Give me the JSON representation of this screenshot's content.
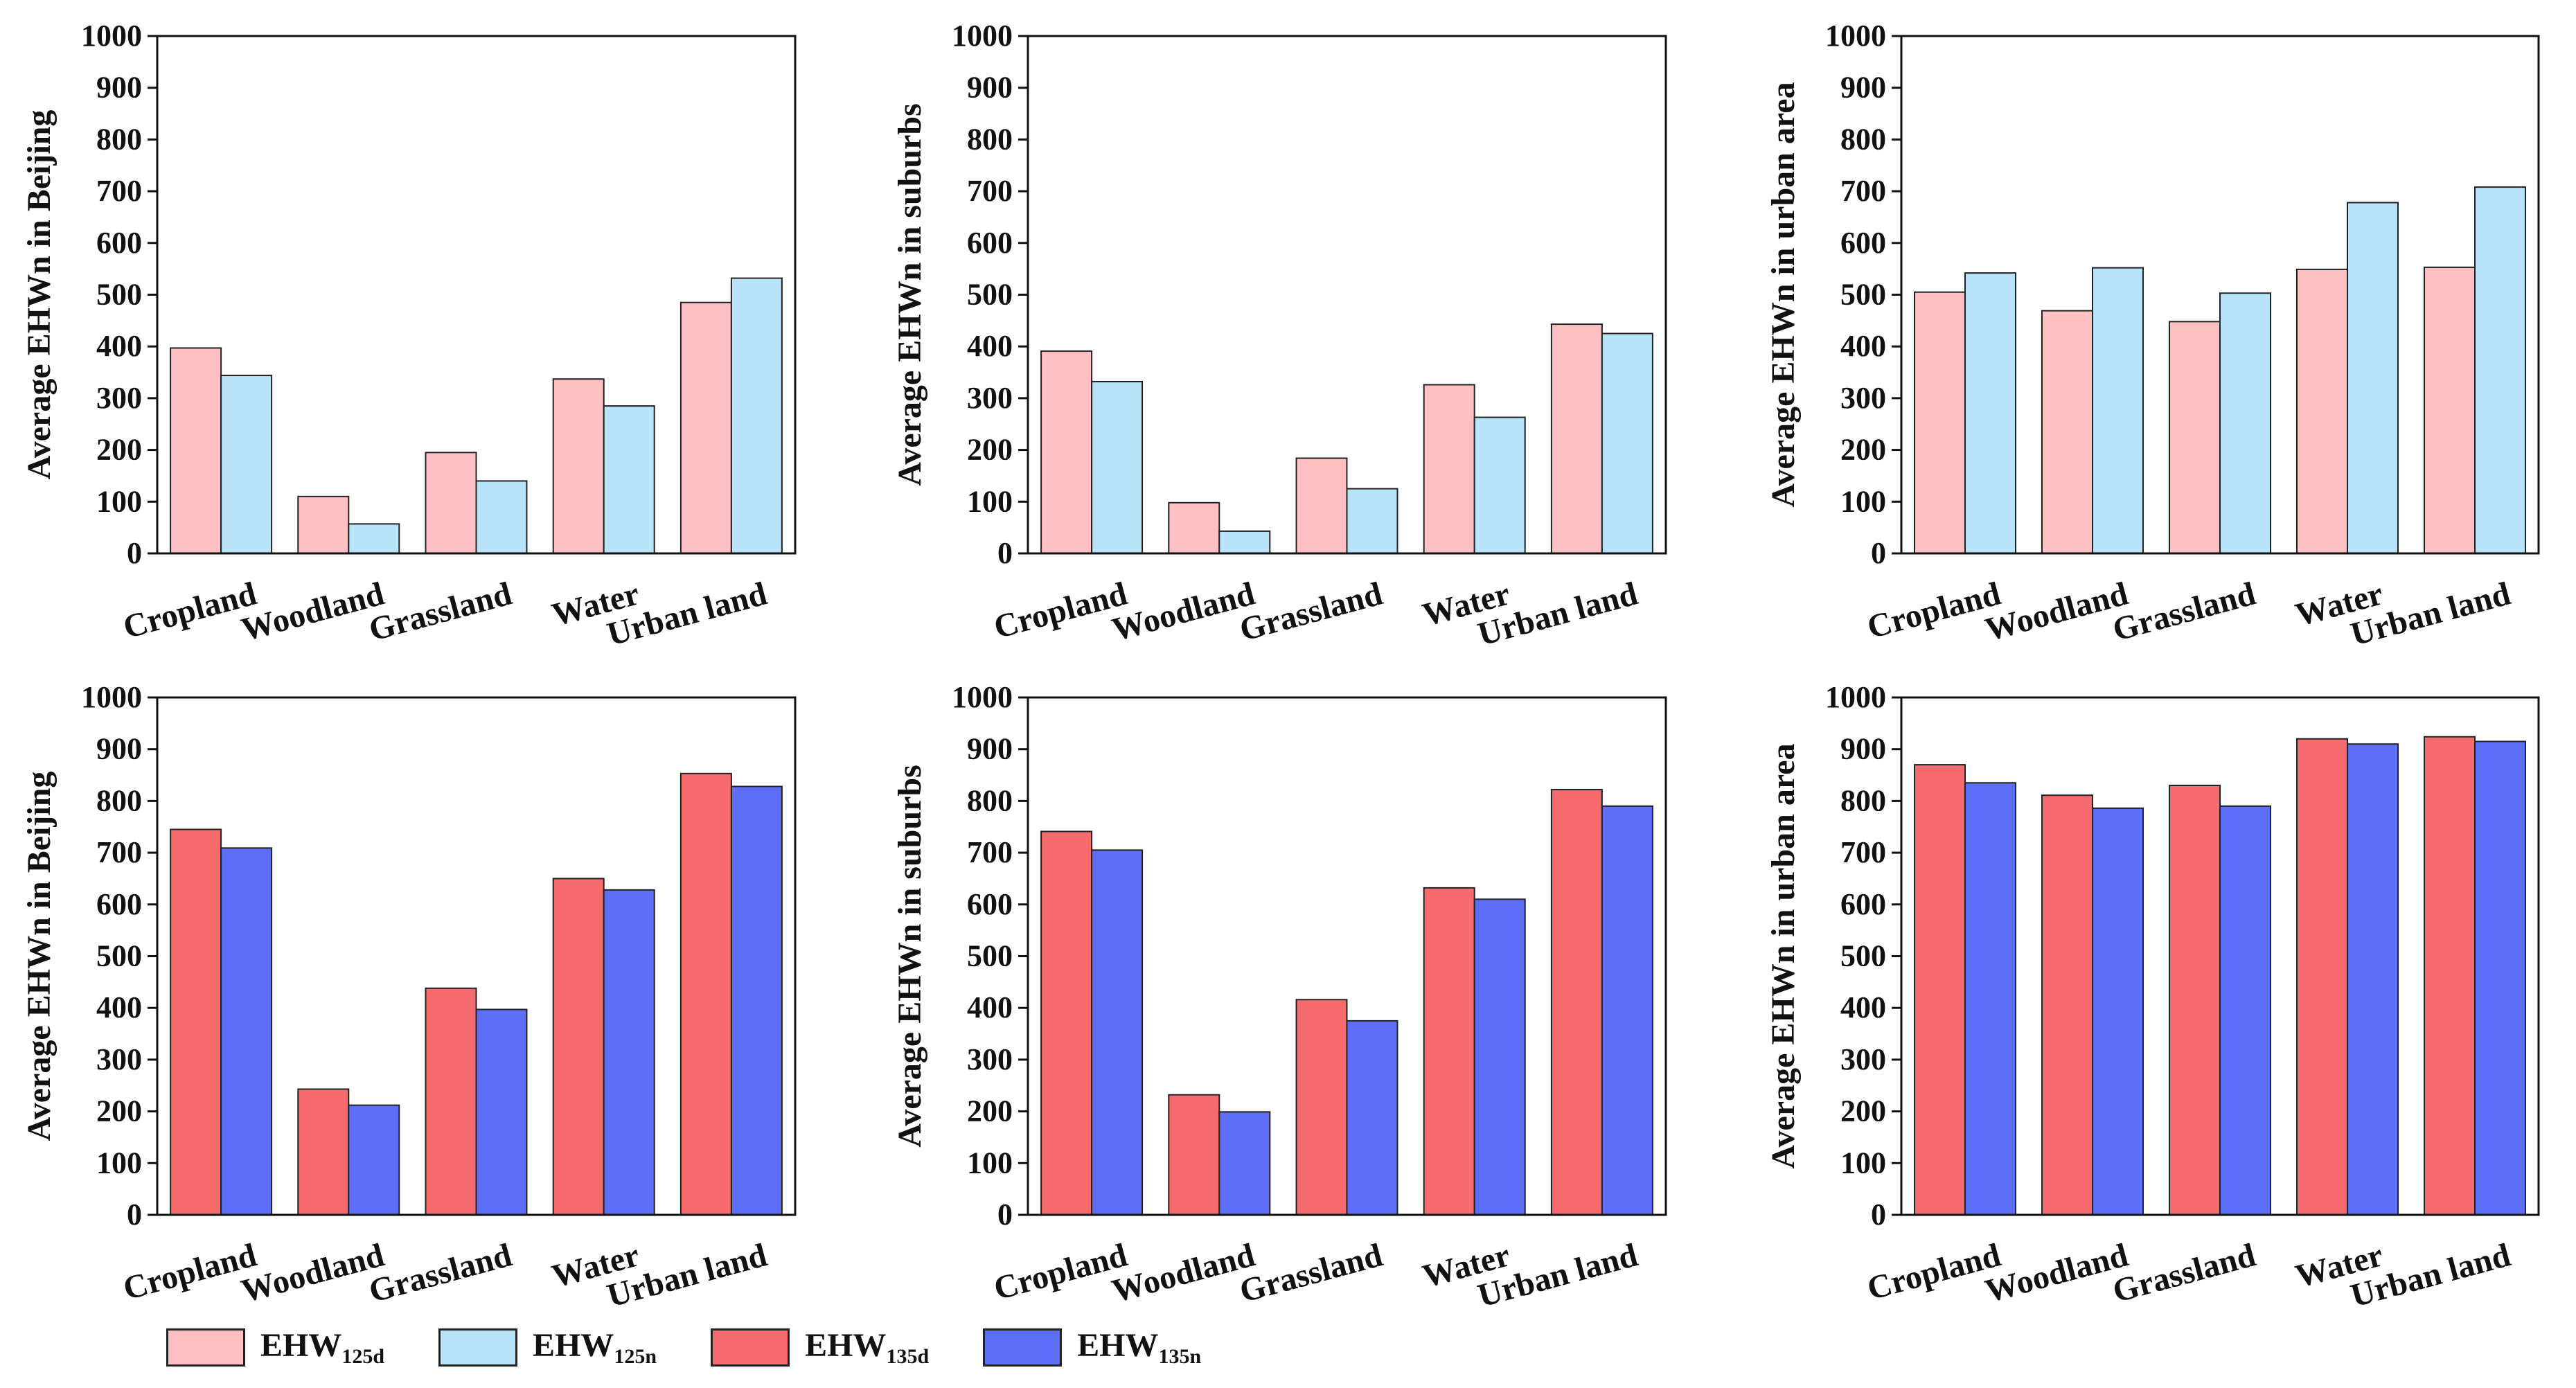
{
  "colors": {
    "EHW125d": "#ffc0c3",
    "EHW125n": "#b8e3f8",
    "EHW135d": "#f56b6e",
    "EHW135n": "#5e6ff7"
  },
  "legend": [
    {
      "key": "EHW125d",
      "main": "EHW",
      "sub": "125d"
    },
    {
      "key": "EHW125n",
      "main": "EHW",
      "sub": "125n"
    },
    {
      "key": "EHW135d",
      "main": "EHW",
      "sub": "135d"
    },
    {
      "key": "EHW135n",
      "main": "EHW",
      "sub": "135n"
    }
  ],
  "chart_data": [
    {
      "type": "bar",
      "ylabel": "Average EHWn in Beijing",
      "categories": [
        "Cropland",
        "Woodland",
        "Grassland",
        "Water",
        "Urban land"
      ],
      "ylim": [
        0,
        1000
      ],
      "yticks": [
        0,
        100,
        200,
        300,
        400,
        500,
        600,
        700,
        800,
        900,
        1000
      ],
      "series": [
        {
          "name": "EHW125d",
          "values": [
            397,
            110,
            195,
            337,
            485
          ]
        },
        {
          "name": "EHW125n",
          "values": [
            344,
            57,
            140,
            285,
            532
          ]
        }
      ]
    },
    {
      "type": "bar",
      "ylabel": "Average EHWn in suburbs",
      "categories": [
        "Cropland",
        "Woodland",
        "Grassland",
        "Water",
        "Urban land"
      ],
      "ylim": [
        0,
        1000
      ],
      "yticks": [
        0,
        100,
        200,
        300,
        400,
        500,
        600,
        700,
        800,
        900,
        1000
      ],
      "series": [
        {
          "name": "EHW125d",
          "values": [
            391,
            98,
            184,
            326,
            443
          ]
        },
        {
          "name": "EHW125n",
          "values": [
            332,
            43,
            125,
            263,
            425
          ]
        }
      ]
    },
    {
      "type": "bar",
      "ylabel": "Average EHWn in urban area",
      "categories": [
        "Cropland",
        "Woodland",
        "Grassland",
        "Water",
        "Urban land"
      ],
      "ylim": [
        0,
        1000
      ],
      "yticks": [
        0,
        100,
        200,
        300,
        400,
        500,
        600,
        700,
        800,
        900,
        1000
      ],
      "series": [
        {
          "name": "EHW125d",
          "values": [
            505,
            469,
            448,
            549,
            553
          ]
        },
        {
          "name": "EHW125n",
          "values": [
            542,
            552,
            503,
            678,
            708
          ]
        }
      ]
    },
    {
      "type": "bar",
      "ylabel": "Average EHWn in Beijing",
      "categories": [
        "Cropland",
        "Woodland",
        "Grassland",
        "Water",
        "Urban land"
      ],
      "ylim": [
        0,
        1000
      ],
      "yticks": [
        0,
        100,
        200,
        300,
        400,
        500,
        600,
        700,
        800,
        900,
        1000
      ],
      "series": [
        {
          "name": "EHW135d",
          "values": [
            745,
            243,
            438,
            650,
            853
          ]
        },
        {
          "name": "EHW135n",
          "values": [
            709,
            212,
            397,
            628,
            828
          ]
        }
      ]
    },
    {
      "type": "bar",
      "ylabel": "Average EHWn in suburbs",
      "categories": [
        "Cropland",
        "Woodland",
        "Grassland",
        "Water",
        "Urban land"
      ],
      "ylim": [
        0,
        1000
      ],
      "yticks": [
        0,
        100,
        200,
        300,
        400,
        500,
        600,
        700,
        800,
        900,
        1000
      ],
      "series": [
        {
          "name": "EHW135d",
          "values": [
            741,
            232,
            416,
            632,
            822
          ]
        },
        {
          "name": "EHW135n",
          "values": [
            705,
            199,
            375,
            610,
            790
          ]
        }
      ]
    },
    {
      "type": "bar",
      "ylabel": "Average EHWn in urban area",
      "categories": [
        "Cropland",
        "Woodland",
        "Grassland",
        "Water",
        "Urban land"
      ],
      "ylim": [
        0,
        1000
      ],
      "yticks": [
        0,
        100,
        200,
        300,
        400,
        500,
        600,
        700,
        800,
        900,
        1000
      ],
      "series": [
        {
          "name": "EHW135d",
          "values": [
            870,
            811,
            830,
            920,
            924
          ]
        },
        {
          "name": "EHW135n",
          "values": [
            835,
            786,
            790,
            910,
            915
          ]
        }
      ]
    }
  ]
}
